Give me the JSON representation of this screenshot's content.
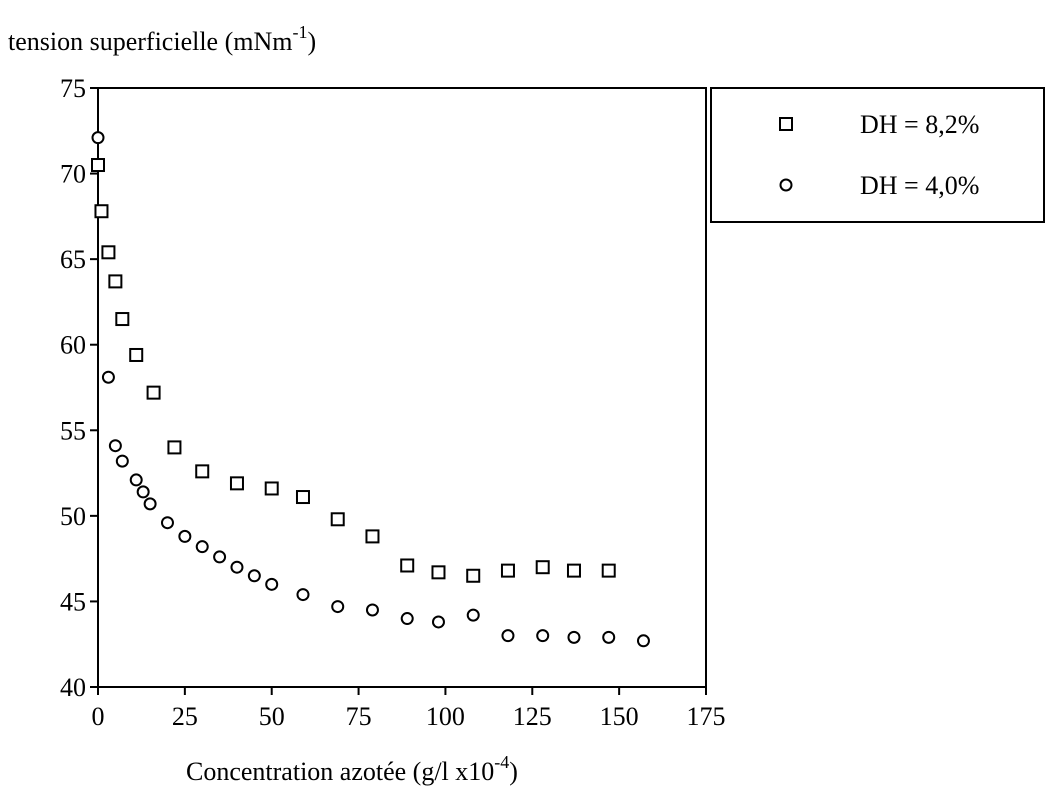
{
  "chart_data": {
    "type": "scatter",
    "title": "",
    "ylabel": "tension superficielle (mNm",
    "ylabel_sup": "-1",
    "ylabel_suffix": ")",
    "xlabel": "Concentration azotée (g/l x10",
    "xlabel_sup": "-4",
    "xlabel_suffix": ")",
    "xlim": [
      0,
      175
    ],
    "ylim": [
      40,
      75
    ],
    "xticks": [
      0,
      25,
      50,
      75,
      100,
      125,
      150,
      175
    ],
    "yticks": [
      40,
      45,
      50,
      55,
      60,
      65,
      70,
      75
    ],
    "grid": false,
    "legend_position": "top-right, outside plot",
    "series": [
      {
        "name": "DH = 8,2%",
        "marker": "square",
        "x": [
          0,
          1,
          3,
          5,
          7,
          11,
          16,
          22,
          30,
          40,
          50,
          59,
          69,
          79,
          89,
          98,
          108,
          118,
          128,
          137,
          147
        ],
        "y": [
          70.5,
          67.8,
          65.4,
          63.7,
          61.5,
          59.4,
          57.2,
          54.0,
          52.6,
          51.9,
          51.6,
          51.1,
          49.8,
          48.8,
          47.1,
          46.7,
          46.5,
          46.8,
          47.0,
          46.8,
          46.8
        ]
      },
      {
        "name": "DH = 4,0%",
        "marker": "circle",
        "x": [
          0,
          3,
          5,
          7,
          11,
          13,
          15,
          20,
          25,
          30,
          35,
          40,
          45,
          50,
          59,
          69,
          79,
          89,
          98,
          108,
          118,
          128,
          137,
          147,
          157
        ],
        "y": [
          72.1,
          58.1,
          54.1,
          53.2,
          52.1,
          51.4,
          50.7,
          49.6,
          48.8,
          48.2,
          47.6,
          47.0,
          46.5,
          46.0,
          45.4,
          44.7,
          44.5,
          44.0,
          43.8,
          44.2,
          43.0,
          43.0,
          42.9,
          42.9,
          42.7
        ]
      }
    ]
  }
}
